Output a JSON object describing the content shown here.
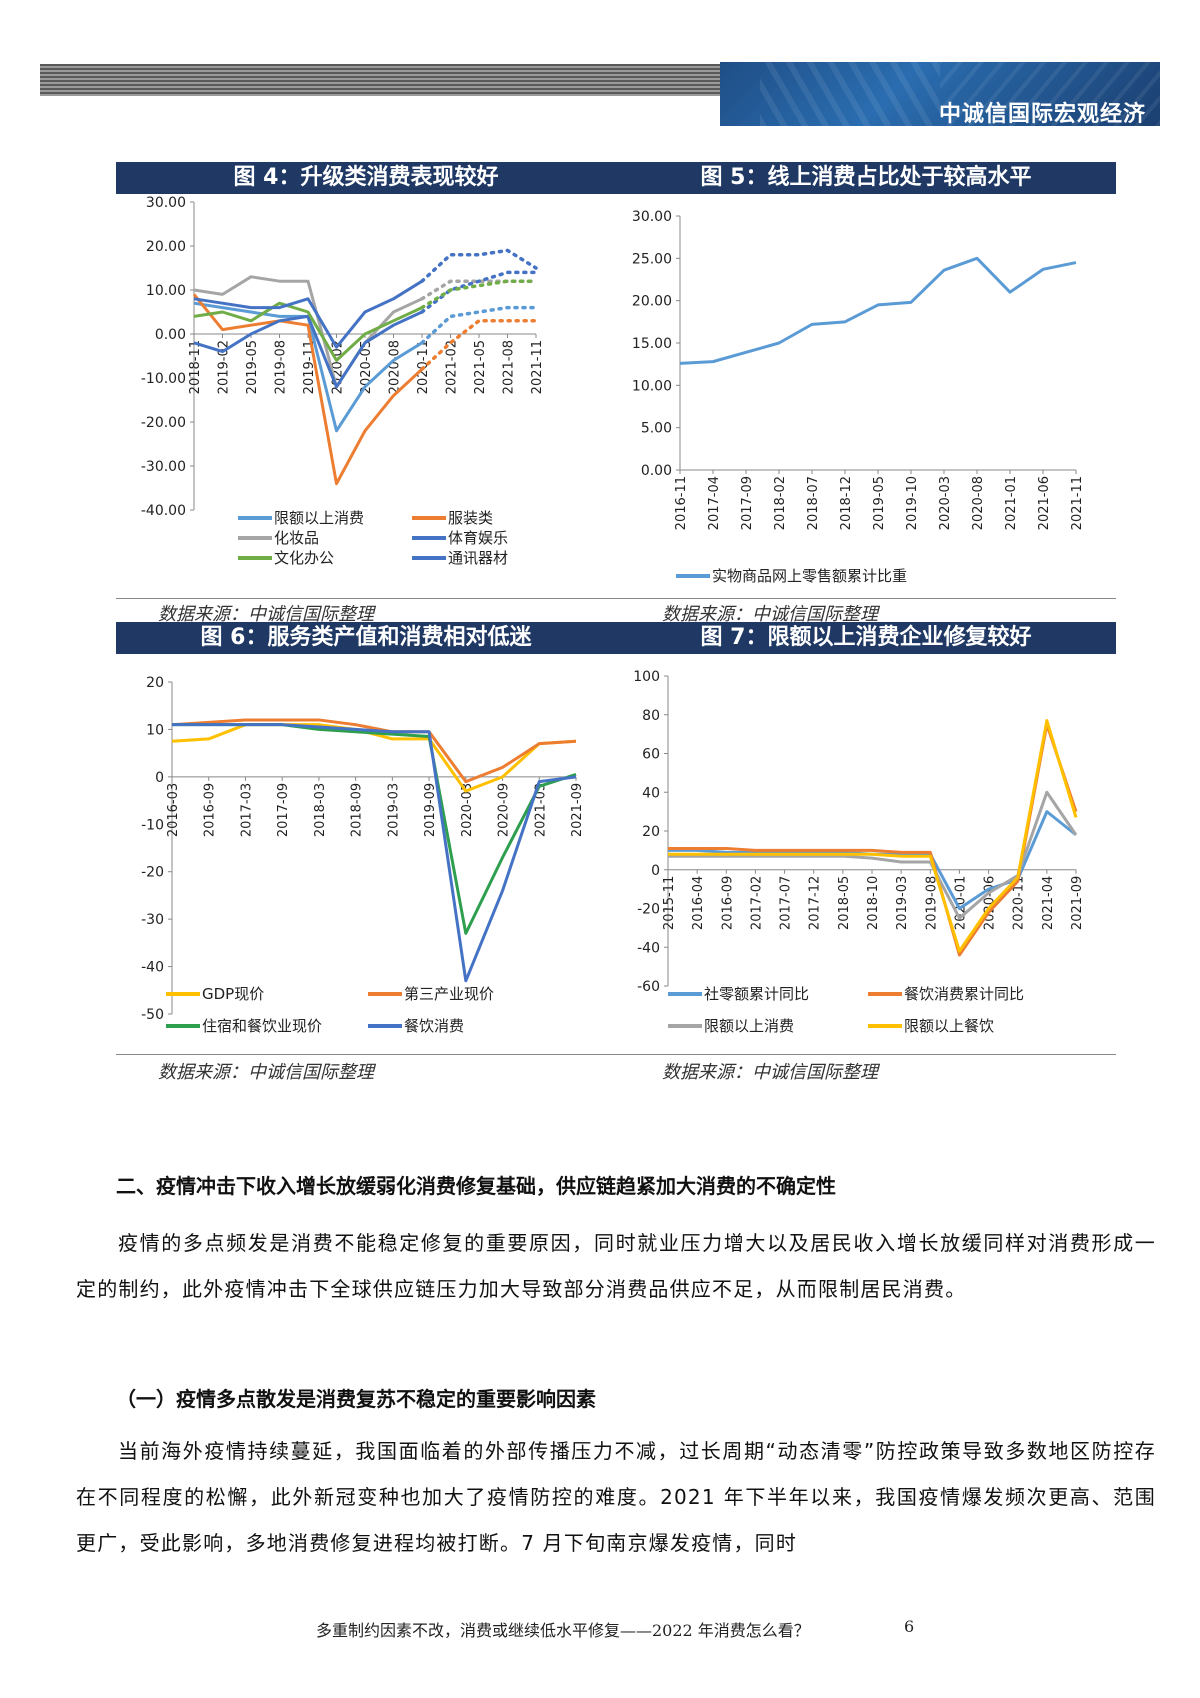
{
  "header": {
    "title": "中诚信国际宏观经济"
  },
  "fig4": {
    "title": "图 4：升级类消费表现较好",
    "source": "数据来源：中诚信国际整理",
    "yticks": [
      "30.00",
      "20.00",
      "10.00",
      "0.00",
      "-10.00",
      "-20.00",
      "-30.00",
      "-40.00"
    ],
    "xticks": [
      "2018-11",
      "2019-02",
      "2019-05",
      "2019-08",
      "2019-11",
      "2020-02",
      "2020-05",
      "2020-08",
      "2020-11",
      "2021-02",
      "2021-05",
      "2021-08",
      "2021-11"
    ],
    "legend": [
      "限额以上消费",
      "服装类",
      "化妆品",
      "体育娱乐",
      "文化办公",
      "通讯器材"
    ]
  },
  "fig5": {
    "title": "图 5：线上消费占比处于较高水平",
    "source": "数据来源：中诚信国际整理",
    "yticks": [
      "30.00",
      "25.00",
      "20.00",
      "15.00",
      "10.00",
      "5.00",
      "0.00"
    ],
    "xticks": [
      "2016-11",
      "2017-04",
      "2017-09",
      "2018-02",
      "2018-07",
      "2018-12",
      "2019-05",
      "2019-10",
      "2020-03",
      "2020-08",
      "2021-01",
      "2021-06",
      "2021-11"
    ],
    "legend": [
      "实物商品网上零售额累计比重"
    ]
  },
  "fig6": {
    "title": "图 6：服务类产值和消费相对低迷",
    "source": "数据来源：中诚信国际整理",
    "unit": "%",
    "yticks": [
      "20",
      "10",
      "0",
      "-10",
      "-20",
      "-30",
      "-40",
      "-50"
    ],
    "xticks": [
      "2016-03",
      "2016-09",
      "2017-03",
      "2017-09",
      "2018-03",
      "2018-09",
      "2019-03",
      "2019-09",
      "2020-03",
      "2020-09",
      "2021-03",
      "2021-09"
    ],
    "legend": [
      "GDP现价",
      "第三产业现价",
      "住宿和餐饮业现价",
      "餐饮消费"
    ]
  },
  "fig7": {
    "title": "图 7：限额以上消费企业修复较好",
    "source": "数据来源：中诚信国际整理",
    "unit": "%",
    "yticks": [
      "100",
      "80",
      "60",
      "40",
      "20",
      "0",
      "-20",
      "-40",
      "-60"
    ],
    "xticks": [
      "2015-11",
      "2016-04",
      "2016-09",
      "2017-02",
      "2017-07",
      "2017-12",
      "2018-05",
      "2018-10",
      "2019-03",
      "2019-08",
      "2020-01",
      "2020-06",
      "2020-11",
      "2021-04",
      "2021-09"
    ],
    "legend": [
      "社零额累计同比",
      "餐饮消费累计同比",
      "限额以上消费",
      "限额以上餐饮"
    ]
  },
  "colors": {
    "blue_light": "#5b9bd5",
    "orange": "#ed7d31",
    "gray": "#a5a5a5",
    "navy": "#4472c4",
    "green": "#70ad47",
    "gold": "#ffc000",
    "dark_green": "#2e9e4f",
    "title_bg": "#1f3864"
  },
  "chart_data": [
    {
      "type": "line",
      "title": "图 4：升级类消费表现较好",
      "x": [
        "2018-11",
        "2019-02",
        "2019-05",
        "2019-08",
        "2019-11",
        "2020-02",
        "2020-05",
        "2020-08",
        "2020-11",
        "2021-02",
        "2021-05",
        "2021-08",
        "2021-11"
      ],
      "ylim": [
        -40,
        30
      ],
      "legend_position": "bottom",
      "series": [
        {
          "name": "限额以上消费",
          "values": [
            7,
            6,
            5,
            4,
            4,
            -22,
            -12,
            -6,
            -2,
            4,
            5,
            6,
            6
          ]
        },
        {
          "name": "服装类",
          "values": [
            9,
            1,
            2,
            3,
            2,
            -34,
            -22,
            -14,
            -8,
            -2,
            3,
            3,
            3
          ]
        },
        {
          "name": "化妆品",
          "values": [
            10,
            9,
            13,
            12,
            12,
            -12,
            -2,
            5,
            8,
            12,
            12,
            12,
            12
          ]
        },
        {
          "name": "体育娱乐",
          "values": [
            -2,
            -4,
            0,
            3,
            4,
            -12,
            -2,
            2,
            5,
            10,
            12,
            14,
            14
          ]
        },
        {
          "name": "文化办公",
          "values": [
            4,
            5,
            3,
            7,
            5,
            -6,
            0,
            3,
            6,
            10,
            11,
            12,
            12
          ]
        },
        {
          "name": "通讯器材",
          "values": [
            8,
            7,
            6,
            6,
            8,
            -3,
            5,
            8,
            12,
            18,
            18,
            19,
            15
          ]
        }
      ]
    },
    {
      "type": "line",
      "title": "图 5：线上消费占比处于较高水平",
      "x": [
        "2016-11",
        "2017-04",
        "2017-09",
        "2018-02",
        "2018-07",
        "2018-12",
        "2019-05",
        "2019-10",
        "2020-03",
        "2020-08",
        "2021-01",
        "2021-06",
        "2021-11"
      ],
      "ylim": [
        0,
        30
      ],
      "legend_position": "bottom",
      "series": [
        {
          "name": "实物商品网上零售额累计比重",
          "values": [
            12.6,
            12.8,
            13.9,
            15.0,
            17.2,
            17.5,
            19.5,
            19.8,
            23.6,
            25.0,
            21.0,
            23.7,
            24.5
          ]
        }
      ]
    },
    {
      "type": "line",
      "title": "图 6：服务类产值和消费相对低迷",
      "x": [
        "2016-03",
        "2016-09",
        "2017-03",
        "2017-09",
        "2018-03",
        "2018-09",
        "2019-03",
        "2019-09",
        "2020-03",
        "2020-09",
        "2021-03",
        "2021-09"
      ],
      "ylim": [
        -50,
        20
      ],
      "legend_position": "bottom",
      "series": [
        {
          "name": "GDP现价",
          "values": [
            7.5,
            8,
            11,
            11,
            11,
            10,
            8,
            8,
            -3,
            0,
            7,
            7.5
          ]
        },
        {
          "name": "第三产业现价",
          "values": [
            11,
            11.5,
            12,
            12,
            12,
            11,
            9.5,
            9.5,
            -1,
            2,
            7,
            7.5
          ]
        },
        {
          "name": "住宿和餐饮业现价",
          "values": [
            11,
            11,
            11,
            11,
            10,
            9.5,
            9,
            8.5,
            -33,
            -17,
            -2,
            0.5
          ]
        },
        {
          "name": "餐饮消费",
          "values": [
            11,
            11,
            11,
            11,
            10.5,
            10,
            9.5,
            9.5,
            -43,
            -24,
            -1,
            0
          ]
        }
      ]
    },
    {
      "type": "line",
      "title": "图 7：限额以上消费企业修复较好",
      "x": [
        "2015-11",
        "2016-04",
        "2016-09",
        "2017-02",
        "2017-07",
        "2017-12",
        "2018-05",
        "2018-10",
        "2019-03",
        "2019-08",
        "2020-01",
        "2020-06",
        "2020-11",
        "2021-04",
        "2021-09"
      ],
      "ylim": [
        -60,
        100
      ],
      "legend_position": "bottom",
      "series": [
        {
          "name": "社零额累计同比",
          "values": [
            10,
            10,
            9,
            9,
            9,
            9,
            9,
            8,
            8,
            8,
            -20,
            -10,
            -5,
            30,
            18
          ]
        },
        {
          "name": "餐饮消费累计同比",
          "values": [
            11,
            11,
            11,
            10,
            10,
            10,
            10,
            10,
            9,
            9,
            -44,
            -22,
            -6,
            75,
            30
          ]
        },
        {
          "name": "限额以上消费",
          "values": [
            7,
            7,
            7,
            7,
            7,
            7,
            7,
            6,
            4,
            4,
            -25,
            -12,
            -3,
            40,
            18
          ]
        },
        {
          "name": "限额以上餐饮",
          "values": [
            8,
            8,
            8,
            8,
            8,
            8,
            8,
            8,
            7,
            7,
            -42,
            -20,
            -4,
            77,
            27
          ]
        }
      ]
    }
  ],
  "section2": {
    "heading": "二、疫情冲击下收入增长放缓弱化消费修复基础，供应链趋紧加大消费的不确定性",
    "para1": "疫情的多点频发是消费不能稳定修复的重要原因，同时就业压力增大以及居民收入增长放缓同样对消费形成一定的制约，此外疫情冲击下全球供应链压力加大导致部分消费品供应不足，从而限制居民消费。",
    "sub1": "（一）疫情多点散发是消费复苏不稳定的重要影响因素",
    "para2": "当前海外疫情持续蔓延，我国面临着的外部传播压力不减，过长周期“动态清零”防控政策导致多数地区防控存在不同程度的松懈，此外新冠变种也加大了疫情防控的难度。2021 年下半年以来，我国疫情爆发频次更高、范围更广，受此影响，多地消费修复进程均被打断。7 月下旬南京爆发疫情，同时"
  },
  "footer": {
    "text": "多重制约因素不改，消费或继续低水平修复——2022 年消费怎么看？",
    "page": "6"
  }
}
